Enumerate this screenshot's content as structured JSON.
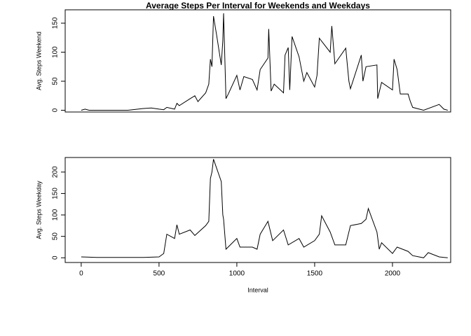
{
  "chart_data": [
    {
      "type": "line",
      "title": "Average Steps Per Interval for Weekends and Weekdays",
      "ylabel": "Avg. Steps Weekend",
      "x": [
        0,
        25,
        50,
        100,
        150,
        300,
        330,
        400,
        450,
        500,
        530,
        550,
        600,
        615,
        630,
        700,
        730,
        750,
        800,
        820,
        830,
        840,
        850,
        870,
        900,
        910,
        915,
        930,
        945,
        1000,
        1020,
        1045,
        1100,
        1130,
        1150,
        1200,
        1205,
        1220,
        1240,
        1300,
        1310,
        1330,
        1340,
        1355,
        1400,
        1430,
        1450,
        1500,
        1515,
        1530,
        1600,
        1610,
        1630,
        1700,
        1720,
        1730,
        1800,
        1810,
        1830,
        1900,
        1905,
        1930,
        2000,
        2010,
        2030,
        2050,
        2100,
        2115,
        2130,
        2200,
        2300,
        2330,
        2355
      ],
      "series": [
        {
          "color": "#000000",
          "values": [
            0,
            2,
            0,
            0,
            0,
            0,
            1,
            3,
            4,
            2,
            1,
            5,
            2,
            12,
            8,
            20,
            25,
            15,
            30,
            45,
            88,
            75,
            162,
            130,
            78,
            120,
            167,
            20,
            28,
            60,
            35,
            58,
            53,
            35,
            70,
            90,
            140,
            33,
            45,
            30,
            95,
            108,
            35,
            127,
            92,
            50,
            65,
            40,
            60,
            124,
            100,
            145,
            80,
            107,
            50,
            37,
            95,
            50,
            75,
            78,
            20,
            48,
            35,
            88,
            70,
            28,
            28,
            15,
            5,
            0,
            10,
            2,
            0
          ]
        }
      ],
      "xlim": [
        -103,
        2374
      ],
      "ylim": [
        -3,
        173
      ],
      "yticks": [
        0,
        50,
        100,
        150
      ]
    },
    {
      "type": "line",
      "xlabel": "Interval",
      "ylabel": "Avg. Steps Weekday",
      "x": [
        0,
        100,
        200,
        300,
        400,
        500,
        530,
        550,
        600,
        615,
        630,
        700,
        730,
        800,
        820,
        830,
        840,
        850,
        900,
        910,
        915,
        930,
        1000,
        1020,
        1100,
        1130,
        1150,
        1200,
        1230,
        1300,
        1330,
        1400,
        1430,
        1500,
        1530,
        1545,
        1600,
        1630,
        1700,
        1730,
        1800,
        1830,
        1845,
        1900,
        1915,
        1930,
        2000,
        2030,
        2100,
        2130,
        2200,
        2230,
        2300,
        2355
      ],
      "series": [
        {
          "color": "#000000",
          "values": [
            2,
            1,
            1,
            1,
            1,
            2,
            10,
            55,
            45,
            77,
            55,
            65,
            52,
            75,
            85,
            185,
            200,
            230,
            178,
            100,
            90,
            20,
            45,
            25,
            25,
            20,
            55,
            85,
            40,
            65,
            30,
            45,
            25,
            40,
            55,
            98,
            60,
            30,
            30,
            75,
            80,
            90,
            115,
            60,
            20,
            35,
            10,
            25,
            15,
            5,
            0,
            12,
            2,
            0
          ]
        }
      ],
      "xlim": [
        -103,
        2374
      ],
      "ylim": [
        -11,
        234
      ],
      "xticks": [
        0,
        500,
        1000,
        1500,
        2000
      ],
      "yticks": [
        0,
        50,
        100,
        150,
        200
      ]
    }
  ]
}
